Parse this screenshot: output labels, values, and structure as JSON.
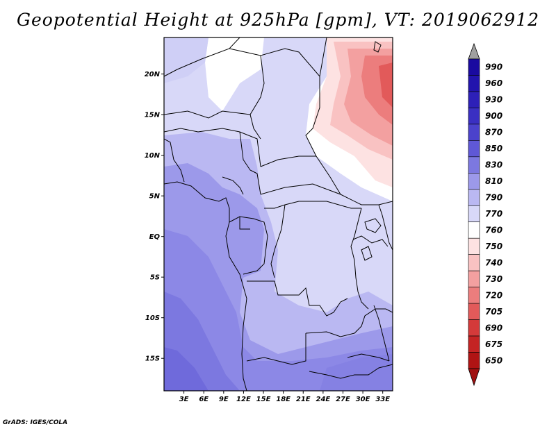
{
  "title": "Geopotential Height at 925hPa [gpm], VT: 2019062912",
  "credit": "GrADS: IGES/COLA",
  "map": {
    "lat_range": [
      -19,
      24.5
    ],
    "lon_range": [
      0,
      34.5
    ],
    "lat_ticks": [
      {
        "value": 20,
        "label": "20N"
      },
      {
        "value": 15,
        "label": "15N"
      },
      {
        "value": 10,
        "label": "10N"
      },
      {
        "value": 5,
        "label": "5N"
      },
      {
        "value": 0,
        "label": "EQ"
      },
      {
        "value": -5,
        "label": "5S"
      },
      {
        "value": -10,
        "label": "10S"
      },
      {
        "value": -15,
        "label": "15S"
      }
    ],
    "lon_ticks": [
      {
        "value": 3,
        "label": "3E"
      },
      {
        "value": 6,
        "label": "6E"
      },
      {
        "value": 9,
        "label": "9E"
      },
      {
        "value": 12,
        "label": "12E"
      },
      {
        "value": 15,
        "label": "15E"
      },
      {
        "value": 18,
        "label": "18E"
      },
      {
        "value": 21,
        "label": "21E"
      },
      {
        "value": 24,
        "label": "24E"
      },
      {
        "value": 27,
        "label": "27E"
      },
      {
        "value": 30,
        "label": "30E"
      },
      {
        "value": 33,
        "label": "33E"
      }
    ]
  },
  "colorbar": {
    "levels": [
      {
        "label": "990",
        "color": "#1a0aa0"
      },
      {
        "label": "960",
        "color": "#2214ad"
      },
      {
        "label": "930",
        "color": "#2d20b8"
      },
      {
        "label": "900",
        "color": "#3a2fc2"
      },
      {
        "label": "870",
        "color": "#4b42cc"
      },
      {
        "label": "850",
        "color": "#5f58d6"
      },
      {
        "label": "830",
        "color": "#7c78e0"
      },
      {
        "label": "810",
        "color": "#9c99ea"
      },
      {
        "label": "790",
        "color": "#bab8f2"
      },
      {
        "label": "770",
        "color": "#d8d8f8"
      },
      {
        "label": "760",
        "color": "#ffffff"
      },
      {
        "label": "750",
        "color": "#fde2e2"
      },
      {
        "label": "740",
        "color": "#f9c2c2"
      },
      {
        "label": "730",
        "color": "#f3a0a0"
      },
      {
        "label": "720",
        "color": "#ec7d7d"
      },
      {
        "label": "705",
        "color": "#e25a5a"
      },
      {
        "label": "690",
        "color": "#d43a3a"
      },
      {
        "label": "675",
        "color": "#c42424"
      },
      {
        "label": "650",
        "color": "#b01414"
      }
    ],
    "top_color": "#a0a0a0",
    "bottom_color": "#a01010"
  }
}
